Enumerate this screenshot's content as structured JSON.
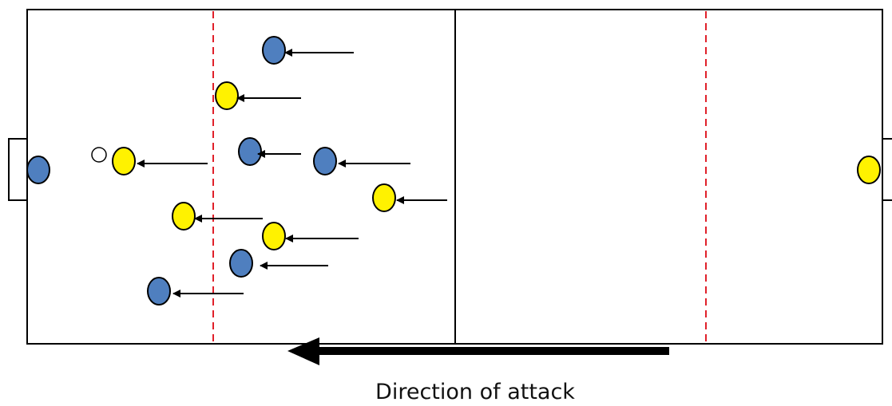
{
  "caption": "Direction of attack",
  "colors": {
    "blue_team": "#4f7fbf",
    "yellow_team": "#fff200",
    "marker_outline": "#000000",
    "zone_line": "#e0202a",
    "pitch_line": "#000000",
    "ball": "#ffffff"
  },
  "players": [
    {
      "team": "blue",
      "role": "goalkeeper"
    },
    {
      "team": "yellow",
      "role": "goalkeeper"
    },
    {
      "team": "blue",
      "role": "outfield",
      "running": true
    },
    {
      "team": "yellow",
      "role": "outfield",
      "running": true
    },
    {
      "team": "yellow",
      "role": "outfield",
      "running": true
    },
    {
      "team": "blue",
      "role": "outfield",
      "running": true
    },
    {
      "team": "blue",
      "role": "outfield",
      "running": true
    },
    {
      "team": "yellow",
      "role": "outfield",
      "running": true
    },
    {
      "team": "yellow",
      "role": "outfield",
      "running": true
    },
    {
      "team": "yellow",
      "role": "outfield",
      "running": true
    },
    {
      "team": "blue",
      "role": "outfield",
      "running": true
    },
    {
      "team": "blue",
      "role": "outfield",
      "running": true
    }
  ],
  "ball": {
    "shown": true
  },
  "attack_direction": "left"
}
